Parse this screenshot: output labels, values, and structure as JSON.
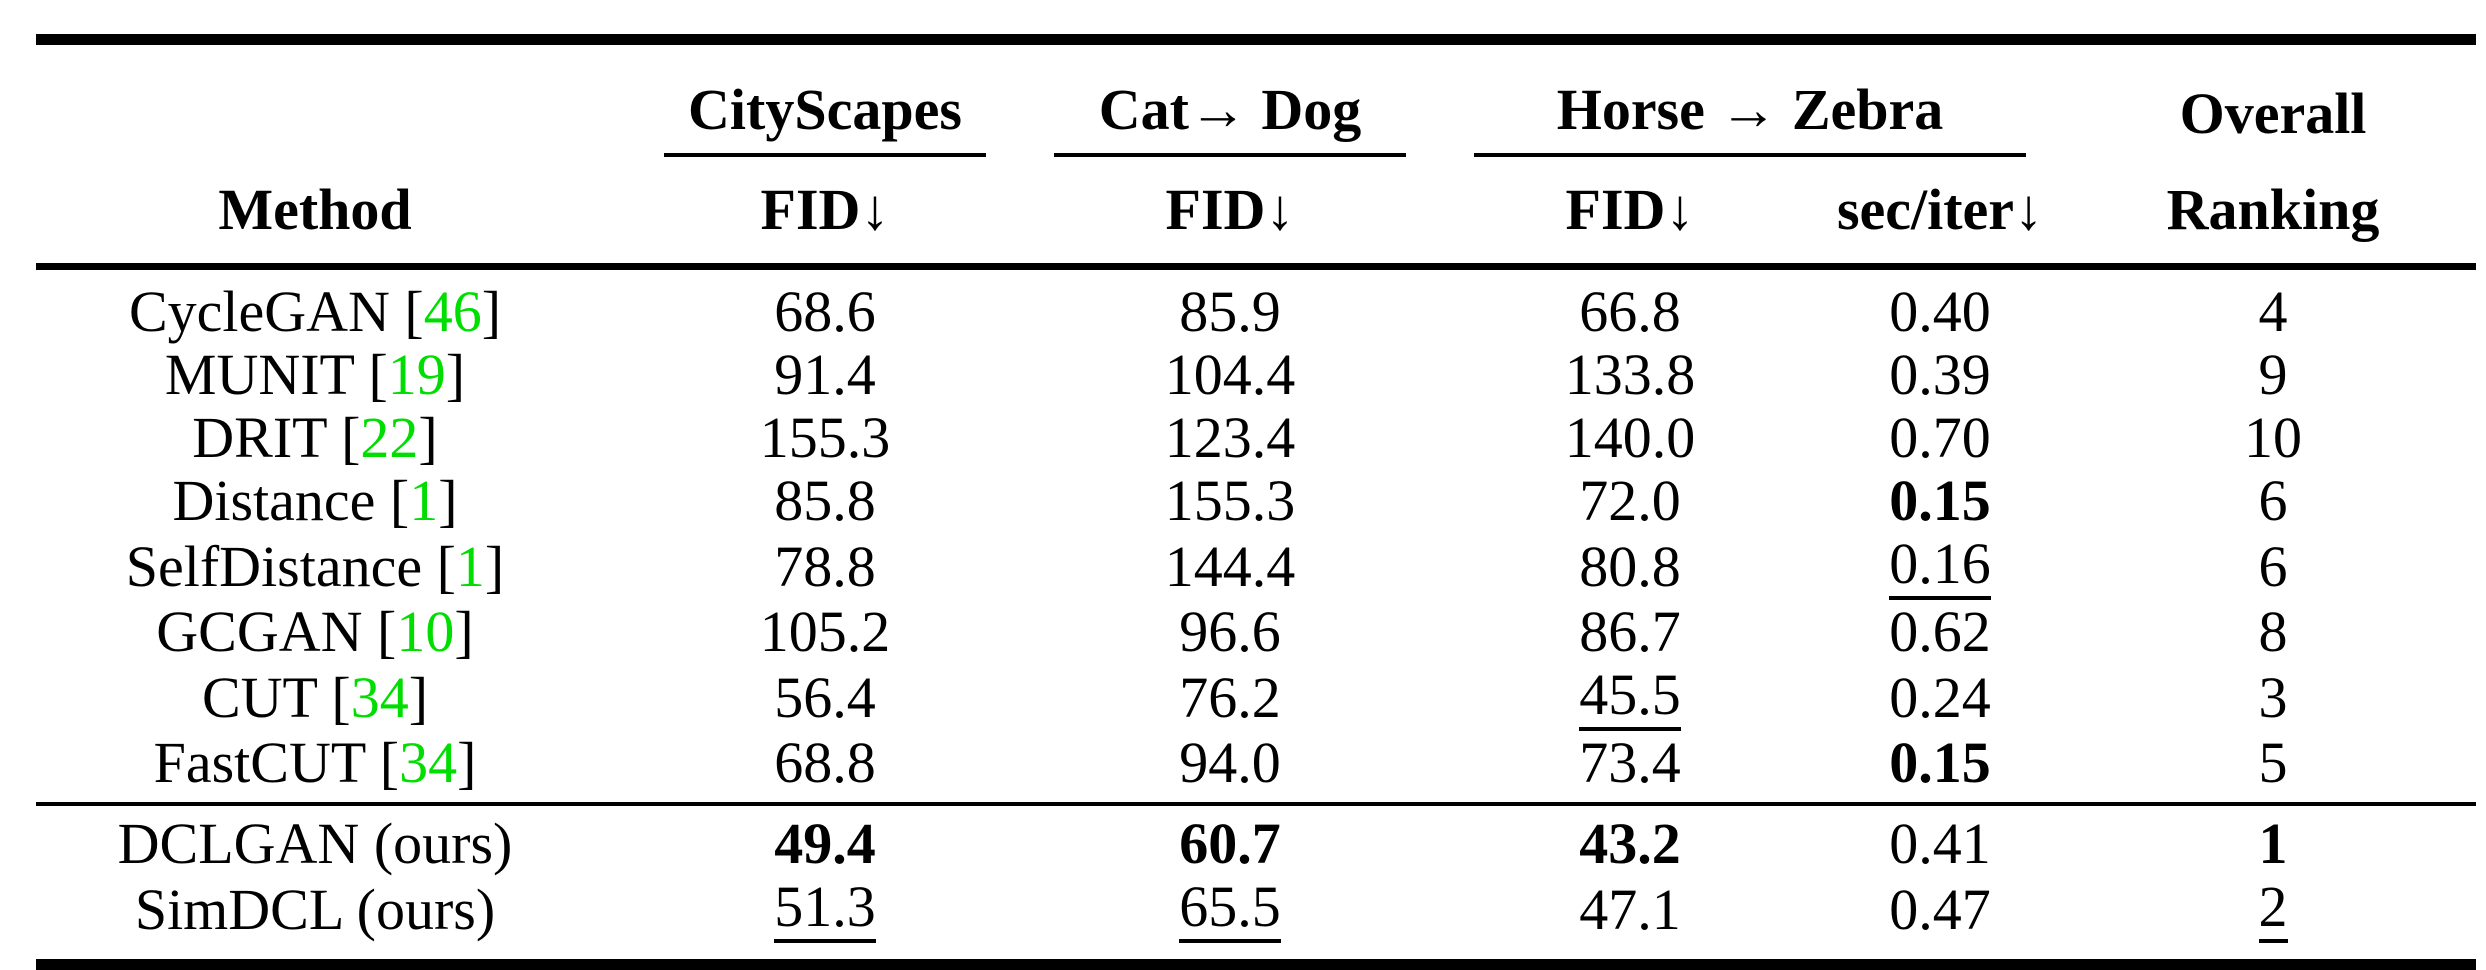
{
  "colors": {
    "citation_green": "#00dd00",
    "text": "#000000",
    "background": "#ffffff"
  },
  "table": {
    "header": {
      "method_label": "Method",
      "groups": [
        {
          "label": "CityScapes"
        },
        {
          "label": "Cat→ Dog"
        },
        {
          "label": "Horse → Zebra"
        },
        {
          "label": "Overall"
        }
      ],
      "subheaders": [
        "FID↓",
        "FID↓",
        "FID↓",
        "sec/iter↓",
        "Ranking"
      ]
    },
    "rows": [
      {
        "method": "CycleGAN",
        "cite": "46",
        "cells": [
          {
            "v": "68.6"
          },
          {
            "v": "85.9"
          },
          {
            "v": "66.8"
          },
          {
            "v": "0.40"
          },
          {
            "v": "4"
          }
        ]
      },
      {
        "method": "MUNIT",
        "cite": "19",
        "cells": [
          {
            "v": "91.4"
          },
          {
            "v": "104.4"
          },
          {
            "v": "133.8"
          },
          {
            "v": "0.39"
          },
          {
            "v": "9"
          }
        ]
      },
      {
        "method": "DRIT",
        "cite": "22",
        "cells": [
          {
            "v": "155.3"
          },
          {
            "v": "123.4"
          },
          {
            "v": "140.0"
          },
          {
            "v": "0.70"
          },
          {
            "v": "10"
          }
        ]
      },
      {
        "method": "Distance",
        "cite": "1",
        "cells": [
          {
            "v": "85.8"
          },
          {
            "v": "155.3"
          },
          {
            "v": "72.0"
          },
          {
            "v": "0.15",
            "s": "b"
          },
          {
            "v": "6"
          }
        ]
      },
      {
        "method": "SelfDistance",
        "cite": "1",
        "cells": [
          {
            "v": "78.8"
          },
          {
            "v": "144.4"
          },
          {
            "v": "80.8"
          },
          {
            "v": "0.16",
            "s": "u"
          },
          {
            "v": "6"
          }
        ]
      },
      {
        "method": "GCGAN",
        "cite": "10",
        "cells": [
          {
            "v": "105.2"
          },
          {
            "v": "96.6"
          },
          {
            "v": "86.7"
          },
          {
            "v": "0.62"
          },
          {
            "v": "8"
          }
        ]
      },
      {
        "method": "CUT",
        "cite": "34",
        "cells": [
          {
            "v": "56.4"
          },
          {
            "v": "76.2"
          },
          {
            "v": "45.5",
            "s": "u"
          },
          {
            "v": "0.24"
          },
          {
            "v": "3"
          }
        ]
      },
      {
        "method": "FastCUT",
        "cite": "34",
        "cells": [
          {
            "v": "68.8"
          },
          {
            "v": "94.0"
          },
          {
            "v": "73.4"
          },
          {
            "v": "0.15",
            "s": "b"
          },
          {
            "v": "5"
          }
        ]
      }
    ],
    "ours_rows": [
      {
        "method": "DCLGAN (ours)",
        "cite": null,
        "cells": [
          {
            "v": "49.4",
            "s": "b"
          },
          {
            "v": "60.7",
            "s": "b"
          },
          {
            "v": "43.2",
            "s": "b"
          },
          {
            "v": "0.41"
          },
          {
            "v": "1",
            "s": "b"
          }
        ]
      },
      {
        "method": "SimDCL (ours)",
        "cite": null,
        "cells": [
          {
            "v": "51.3",
            "s": "u"
          },
          {
            "v": "65.5",
            "s": "u"
          },
          {
            "v": "47.1"
          },
          {
            "v": "0.47"
          },
          {
            "v": "2",
            "s": "u"
          }
        ]
      }
    ]
  }
}
